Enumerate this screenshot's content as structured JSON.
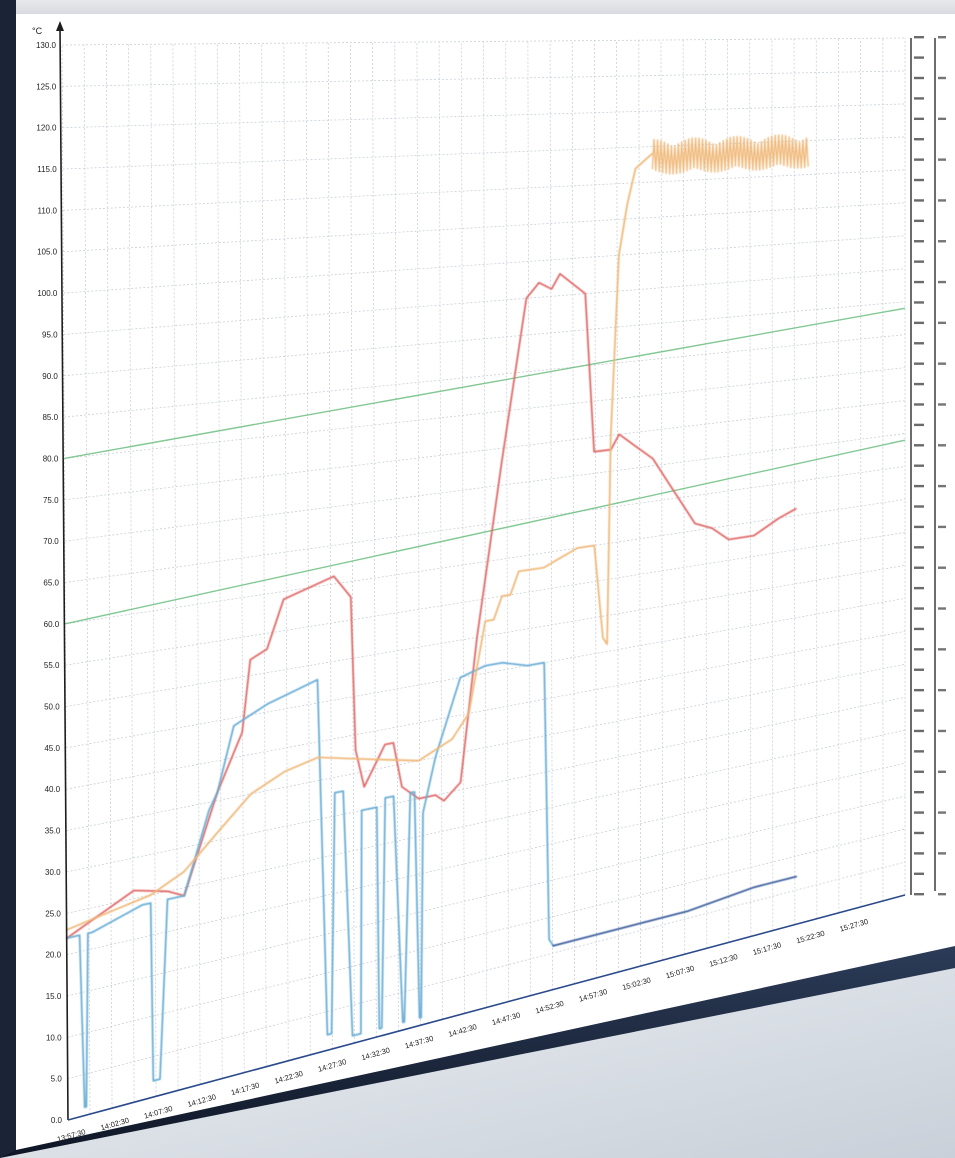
{
  "chart_data": {
    "type": "line",
    "y_unit_label": "°C",
    "right_axis_label": "",
    "ylim": [
      0,
      130
    ],
    "y_ticks": [
      "0.0",
      "5.0",
      "10.0",
      "15.0",
      "20.0",
      "25.0",
      "30.0",
      "35.0",
      "40.0",
      "45.0",
      "50.0",
      "55.0",
      "60.0",
      "65.0",
      "70.0",
      "75.0",
      "80.0",
      "85.0",
      "90.0",
      "95.0",
      "100.0",
      "105.0",
      "110.0",
      "115.0",
      "120.0",
      "125.0",
      "130.0"
    ],
    "x_ticks": [
      "13:57:30",
      "14:02:30",
      "14:07:30",
      "14:12:30",
      "14:17:30",
      "14:22:30",
      "14:27:30",
      "14:32:30",
      "14:37:30",
      "14:42:30",
      "14:47:30",
      "14:52:30",
      "14:57:30",
      "15:02:30",
      "15:07:30",
      "15:12:30",
      "15:17:30",
      "15:22:30",
      "15:27:30"
    ],
    "grid": true,
    "thresholds": [
      {
        "name": "",
        "color": "#6cbf80",
        "start": 80,
        "end": 89
      },
      {
        "name": "",
        "color": "#6cbf80",
        "start": 60,
        "end": 69
      }
    ],
    "series": [
      {
        "name": "",
        "color": "#e06a68",
        "x": [
          0.0,
          0.02,
          0.08,
          0.12,
          0.14,
          0.17,
          0.18,
          0.21,
          0.22,
          0.24,
          0.26,
          0.32,
          0.34,
          0.345,
          0.355,
          0.38,
          0.39,
          0.4,
          0.42,
          0.44,
          0.45,
          0.47,
          0.49,
          0.52,
          0.55,
          0.565,
          0.58,
          0.59,
          0.62,
          0.63,
          0.65,
          0.66,
          0.68,
          0.7,
          0.72,
          0.75,
          0.77,
          0.79,
          0.82,
          0.85,
          0.87
        ],
        "values": [
          22,
          23,
          26,
          25,
          24,
          33,
          36,
          43,
          52,
          53,
          59,
          61,
          58,
          38,
          33,
          38,
          38,
          32,
          30,
          30,
          29,
          31,
          50,
          73,
          95,
          97,
          96,
          98,
          95,
          73,
          73,
          75,
          73,
          71,
          67,
          61,
          60,
          58,
          58,
          60,
          61
        ]
      },
      {
        "name": "",
        "color": "#6aaed6",
        "x": [
          0.0,
          0.015,
          0.02,
          0.022,
          0.025,
          0.03,
          0.09,
          0.1,
          0.102,
          0.11,
          0.12,
          0.14,
          0.17,
          0.18,
          0.2,
          0.22,
          0.24,
          0.27,
          0.3,
          0.31,
          0.315,
          0.32,
          0.33,
          0.34,
          0.35,
          0.352,
          0.36,
          0.37,
          0.372,
          0.375,
          0.38,
          0.39,
          0.4,
          0.402,
          0.41,
          0.415,
          0.42,
          0.422,
          0.425,
          0.44,
          0.47,
          0.5,
          0.52,
          0.55,
          0.57,
          0.575,
          0.58
        ],
        "values": [
          22,
          22,
          1,
          1,
          22,
          22,
          24,
          24,
          2,
          2,
          24,
          24,
          34,
          36,
          44,
          45,
          46,
          47,
          48,
          2,
          2,
          33,
          33,
          1,
          1,
          30,
          30,
          30,
          1,
          1,
          31,
          31,
          1,
          1,
          31,
          31,
          1,
          1,
          28,
          35,
          45,
          46,
          46,
          45,
          45,
          7,
          6
        ]
      },
      {
        "name": "",
        "color": "#f0b97a",
        "x": [
          0.0,
          0.05,
          0.1,
          0.14,
          0.18,
          0.22,
          0.26,
          0.3,
          0.34,
          0.38,
          0.42,
          0.46,
          0.48,
          0.5,
          0.51,
          0.52,
          0.53,
          0.54,
          0.55,
          0.57,
          0.59,
          0.61,
          0.63,
          0.64,
          0.645,
          0.65,
          0.66,
          0.67,
          0.68,
          0.69,
          0.7
        ],
        "values": [
          23,
          24,
          25,
          27,
          31,
          35,
          37,
          38,
          37,
          36,
          35,
          37,
          40,
          52,
          52,
          55,
          55,
          58,
          58,
          58,
          59,
          60,
          60,
          47,
          46,
          75,
          100,
          107,
          112,
          113,
          114
        ]
      },
      {
        "name": "",
        "color": "#3e5f9e",
        "x": [
          0.58,
          0.66,
          0.74,
          0.82,
          0.87
        ],
        "values": [
          6,
          6,
          6,
          7,
          7
        ]
      }
    ]
  }
}
